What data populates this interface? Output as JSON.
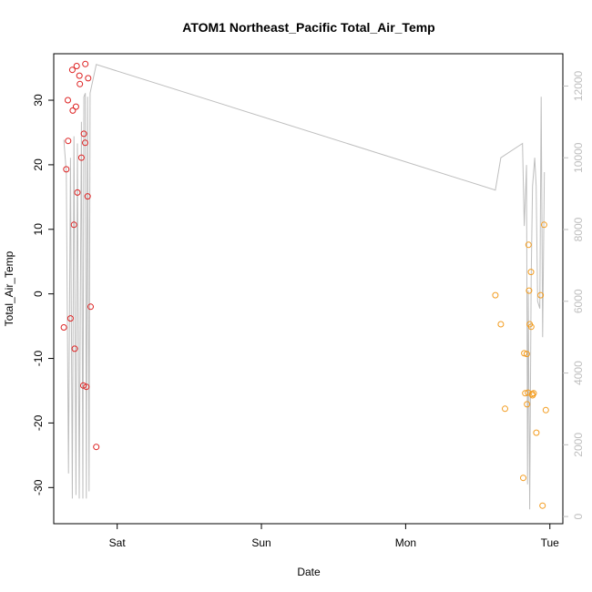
{
  "chart_data": {
    "type": "scatter",
    "title": "ATOM1 Northeast_Pacific Total_Air_Temp",
    "xlabel": "Date",
    "ylabel": "Total_Air_Temp",
    "x_ticks": [
      {
        "x": 1.0,
        "label": "Sat"
      },
      {
        "x": 2.0,
        "label": "Sun"
      },
      {
        "x": 3.0,
        "label": "Mon"
      },
      {
        "x": 4.0,
        "label": "Tue"
      }
    ],
    "xlim": [
      0.56,
      4.09
    ],
    "ylim": [
      -35.6,
      37.2
    ],
    "y_ticks": [
      -30,
      -20,
      -10,
      0,
      10,
      20,
      30
    ],
    "y2lim": [
      -200,
      12900
    ],
    "y2_ticks": [
      0,
      2000,
      4000,
      6000,
      8000,
      10000,
      12000
    ],
    "colors": {
      "series_early": "#dd2222",
      "series_late": "#f39c1f",
      "line": "#bebebe"
    },
    "series": [
      {
        "points": [
          [
            0.63,
            -5.2
          ],
          [
            0.647,
            19.3
          ],
          [
            0.658,
            30.0
          ],
          [
            0.66,
            23.7
          ],
          [
            0.676,
            -3.8
          ],
          [
            0.689,
            34.7
          ],
          [
            0.692,
            28.4
          ],
          [
            0.7,
            10.7
          ],
          [
            0.705,
            -8.5
          ],
          [
            0.714,
            29.0
          ],
          [
            0.719,
            35.3
          ],
          [
            0.724,
            15.7
          ],
          [
            0.738,
            33.8
          ],
          [
            0.741,
            32.5
          ],
          [
            0.752,
            21.1
          ],
          [
            0.765,
            -14.2
          ],
          [
            0.769,
            24.8
          ],
          [
            0.779,
            35.6
          ],
          [
            0.778,
            23.4
          ],
          [
            0.786,
            -14.4
          ],
          [
            0.795,
            15.1
          ],
          [
            0.799,
            33.4
          ],
          [
            0.816,
            -2.0
          ],
          [
            0.855,
            -23.7
          ]
        ]
      },
      {
        "points": [
          [
            3.622,
            -0.2
          ],
          [
            3.66,
            -4.7
          ],
          [
            3.689,
            -17.8
          ],
          [
            3.815,
            -28.5
          ],
          [
            3.822,
            -9.2
          ],
          [
            3.829,
            -15.4
          ],
          [
            3.84,
            -9.3
          ],
          [
            3.842,
            -17.1
          ],
          [
            3.848,
            -15.3
          ],
          [
            3.852,
            7.6
          ],
          [
            3.856,
            0.5
          ],
          [
            3.86,
            -4.7
          ],
          [
            3.869,
            3.4
          ],
          [
            3.871,
            -5.1
          ],
          [
            3.877,
            -15.5
          ],
          [
            3.88,
            -15.7
          ],
          [
            3.888,
            -15.4
          ],
          [
            3.906,
            -21.5
          ],
          [
            3.936,
            -0.2
          ],
          [
            3.949,
            -32.8
          ],
          [
            3.96,
            10.7
          ],
          [
            3.972,
            -18.0
          ]
        ]
      }
    ],
    "line": {
      "x": [
        0.63,
        0.647,
        0.662,
        0.676,
        0.689,
        0.7,
        0.714,
        0.724,
        0.737,
        0.746,
        0.752,
        0.762,
        0.769,
        0.779,
        0.786,
        0.795,
        0.805,
        0.812,
        0.855,
        3.622,
        3.66,
        3.81,
        3.822,
        3.829,
        3.838,
        3.845,
        3.85,
        3.86,
        3.87,
        3.88,
        3.895,
        3.905,
        3.915,
        3.93,
        3.94,
        3.95,
        3.962
      ],
      "y": [
        10500,
        9600,
        1200,
        10000,
        500,
        10600,
        600,
        10400,
        500,
        7200,
        11000,
        500,
        11700,
        11800,
        500,
        11700,
        700,
        11800,
        12600,
        9100,
        10000,
        10400,
        8100,
        8800,
        9800,
        900,
        6300,
        200,
        6600,
        9200,
        10000,
        9200,
        6000,
        5800,
        11700,
        5000,
        9600
      ]
    }
  }
}
